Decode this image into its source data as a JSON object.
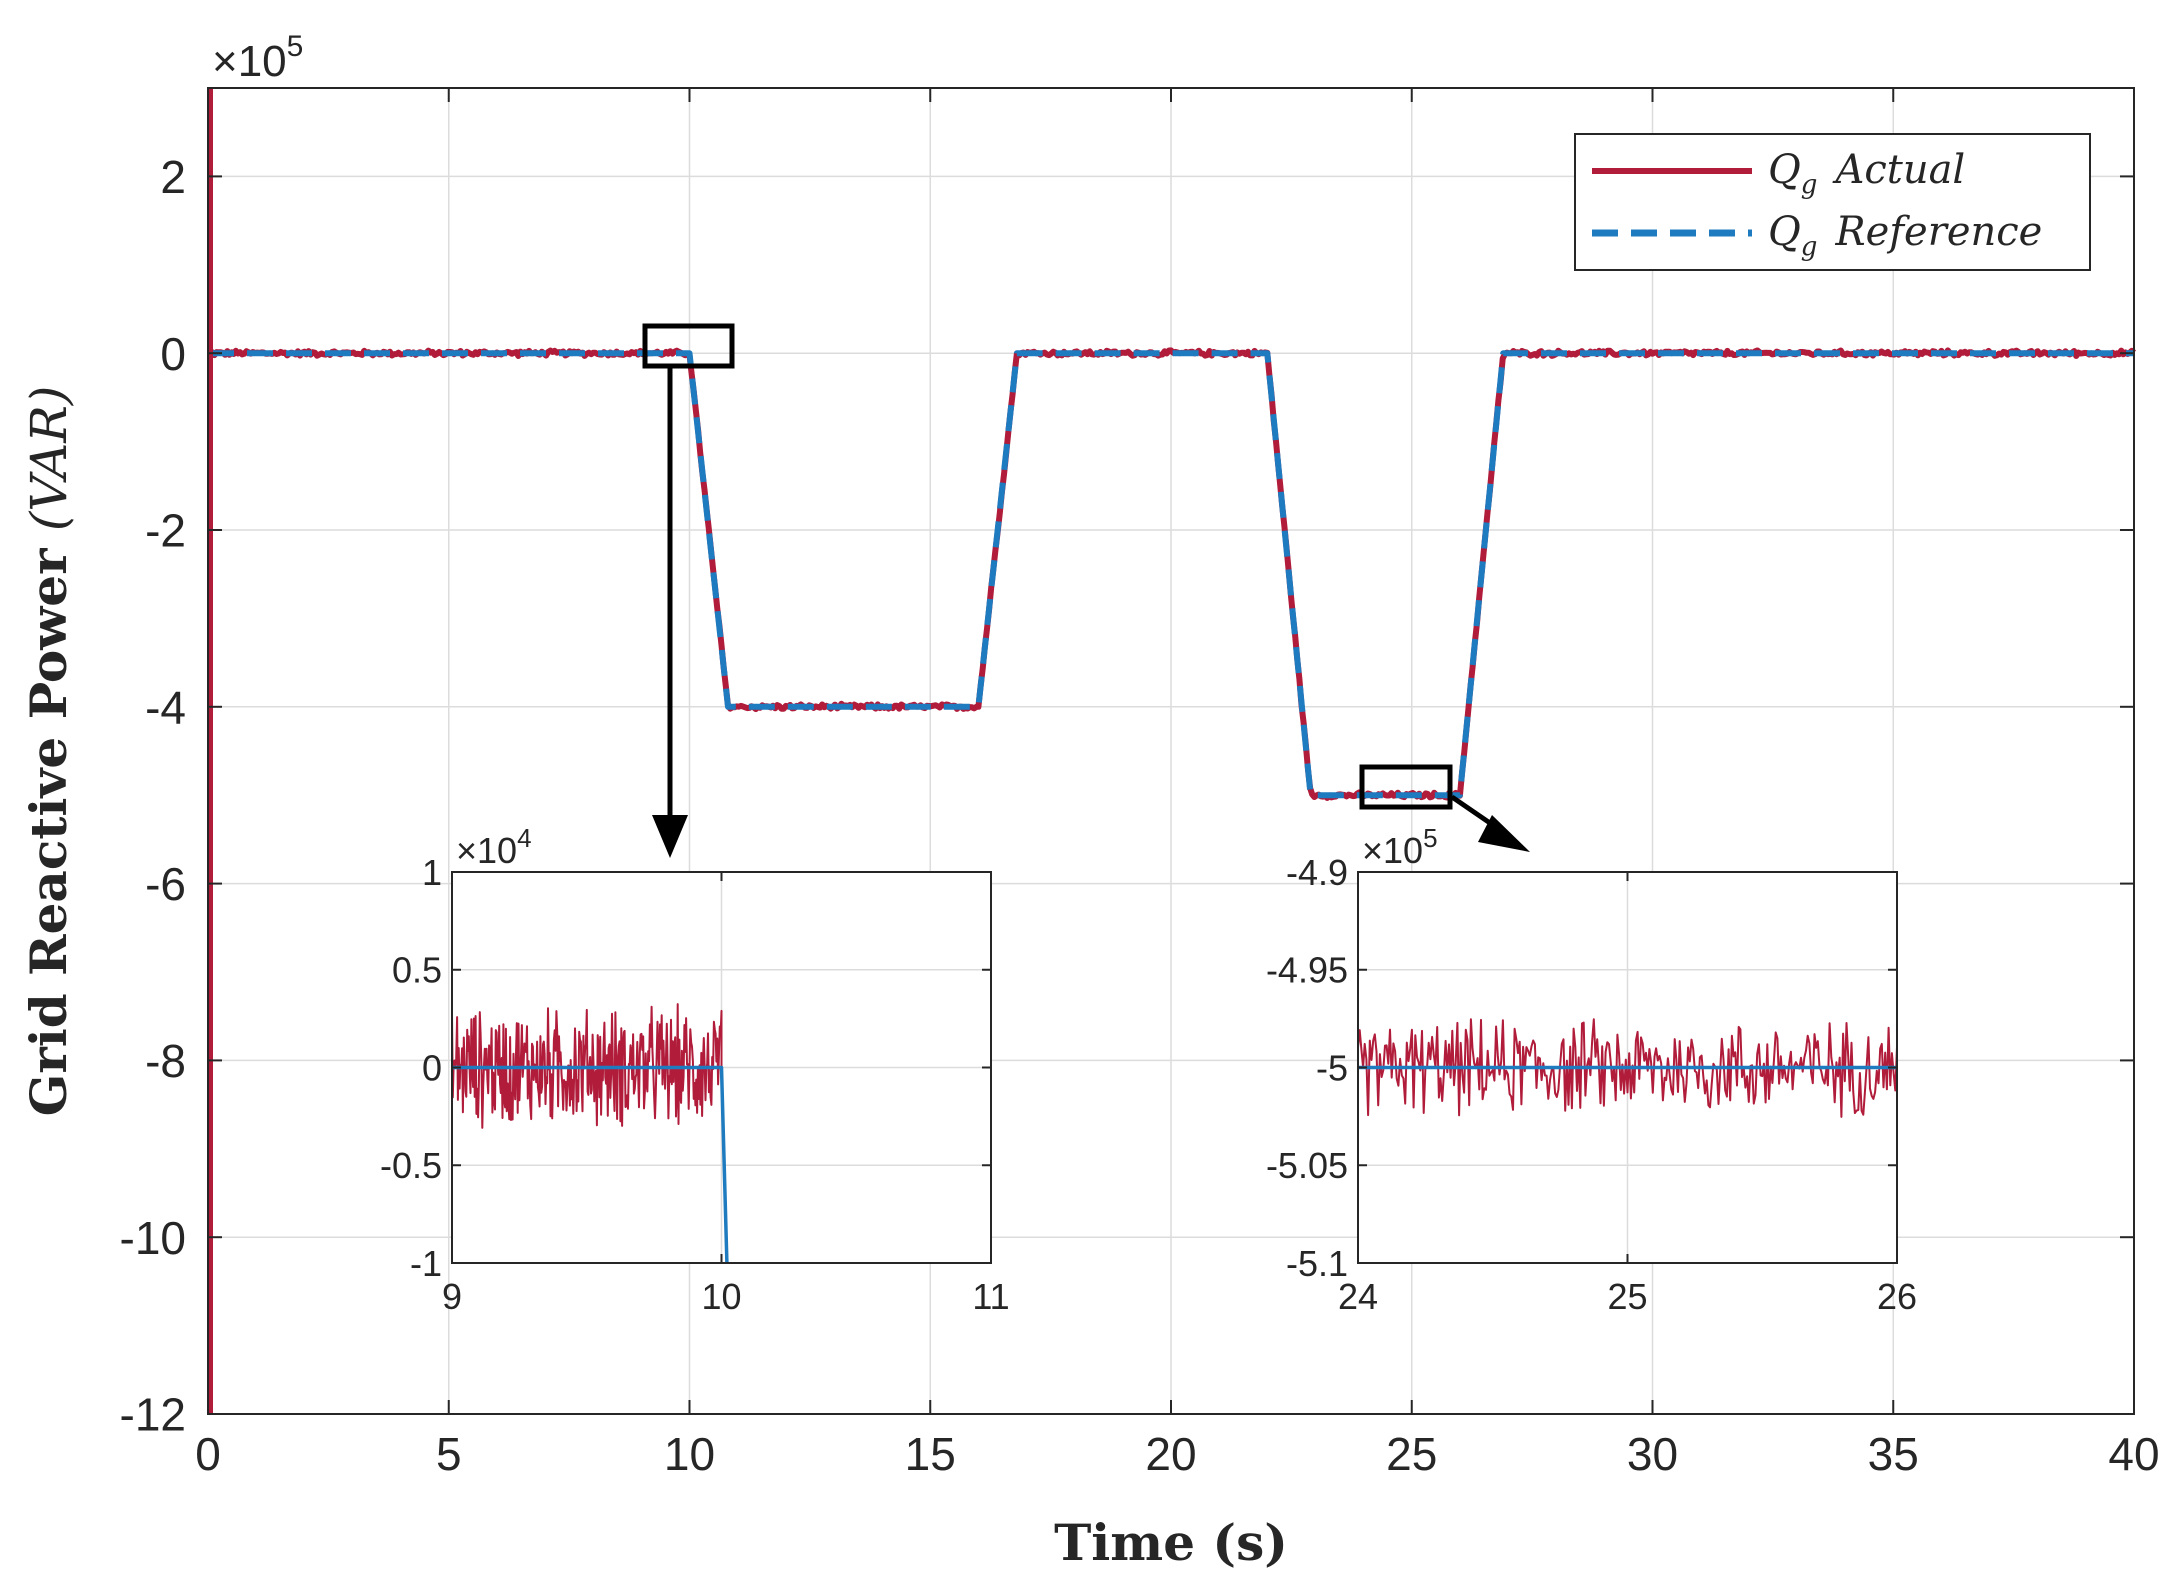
{
  "chart_data": [
    {
      "id": "main",
      "type": "line",
      "title": "",
      "xlabel": "Time (s)",
      "ylabel_main": "Grid Reactive Power",
      "ylabel_unit": "(VAR)",
      "xlim": [
        0,
        40
      ],
      "ylim": [
        -12,
        3
      ],
      "y_exponent": "×10",
      "y_exponent_power": "5",
      "xticks": [
        0,
        5,
        10,
        15,
        20,
        25,
        30,
        35,
        40
      ],
      "xtick_labels": [
        "0",
        "5",
        "10",
        "15",
        "20",
        "25",
        "30",
        "35",
        "40"
      ],
      "yticks": [
        2,
        0,
        -2,
        -4,
        -6,
        -8,
        -10,
        -12
      ],
      "ytick_labels": [
        "2",
        "0",
        "-2",
        "-4",
        "-6",
        "-8",
        "-10",
        "-12"
      ],
      "grid": true,
      "legend_position": "top-right",
      "series": [
        {
          "name": "Qg Actual",
          "legend_symbol": "Q",
          "legend_sub": "g",
          "legend_text": "Actual",
          "color": "#b01c3a",
          "style": "solid",
          "noise_amplitude": 0.035,
          "x": [
            0,
            10,
            10.8,
            16,
            16.8,
            22,
            22.9,
            26,
            26.9,
            40
          ],
          "y": [
            0,
            0,
            -4,
            -4,
            0,
            0,
            -5,
            -5,
            0,
            0
          ]
        },
        {
          "name": "Qg Reference",
          "legend_symbol": "Q",
          "legend_sub": "g",
          "legend_text": "Reference",
          "color": "#1e7bbf",
          "style": "dashed",
          "x": [
            0,
            10,
            10.8,
            16,
            16.8,
            22,
            22.9,
            26,
            26.9,
            40
          ],
          "y": [
            0,
            0,
            -4,
            -4,
            0,
            0,
            -5,
            -5,
            0,
            0
          ]
        }
      ],
      "initial_spike": {
        "x": 0,
        "y_min": -12,
        "y_max": 3
      }
    },
    {
      "id": "inset-left",
      "type": "line",
      "xlim": [
        9,
        11
      ],
      "ylim": [
        -1,
        1
      ],
      "y_exponent": "×10",
      "y_exponent_power": "4",
      "xticks": [
        9,
        10,
        11
      ],
      "xtick_labels": [
        "9",
        "10",
        "11"
      ],
      "yticks": [
        1,
        0.5,
        0,
        -0.5,
        -1
      ],
      "ytick_labels": [
        "1",
        "0.5",
        "0",
        "-0.5",
        "-1"
      ],
      "grid": true,
      "series": [
        {
          "name": "Qg Actual",
          "color": "#b01c3a",
          "noise_amplitude": 0.35,
          "x": [
            9,
            10
          ],
          "y": [
            0,
            0
          ]
        },
        {
          "name": "Qg Reference",
          "color": "#1e7bbf",
          "x": [
            9,
            10,
            10.02
          ],
          "y": [
            0,
            0,
            -1
          ]
        }
      ]
    },
    {
      "id": "inset-right",
      "type": "line",
      "xlim": [
        24,
        26
      ],
      "ylim": [
        -5.1,
        -4.9
      ],
      "y_exponent": "×10",
      "y_exponent_power": "5",
      "xticks": [
        24,
        25,
        26
      ],
      "xtick_labels": [
        "24",
        "25",
        "26"
      ],
      "yticks": [
        -4.9,
        -4.95,
        -5,
        -5.05,
        -5.1
      ],
      "ytick_labels": [
        "-4.9",
        "-4.95",
        "-5",
        "-5.05",
        "-5.1"
      ],
      "grid": true,
      "series": [
        {
          "name": "Qg Actual",
          "color": "#b01c3a",
          "noise_amplitude": 0.028,
          "x": [
            24,
            26
          ],
          "y": [
            -5,
            -5
          ]
        },
        {
          "name": "Qg Reference",
          "color": "#1e7bbf",
          "x": [
            24,
            26
          ],
          "y": [
            -5,
            -5
          ]
        }
      ]
    }
  ]
}
